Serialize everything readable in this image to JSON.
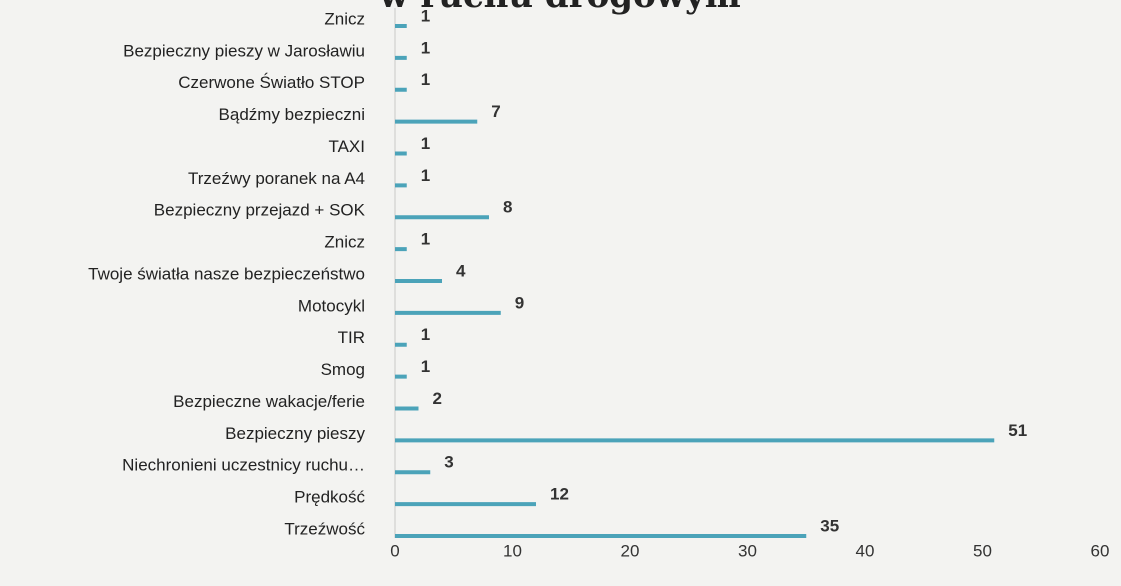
{
  "chart_data": {
    "type": "bar",
    "orientation": "horizontal",
    "title": "w ruchu drogowym",
    "categories": [
      "Znicz",
      "Bezpieczny pieszy w Jarosławiu",
      "Czerwone Światło STOP",
      "Bądźmy bezpieczni",
      "TAXI",
      "Trzeźwy poranek na A4",
      "Bezpieczny przejazd + SOK",
      "Znicz",
      "Twoje światła nasze bezpieczeństwo",
      "Motocykl",
      "TIR",
      "Smog",
      "Bezpieczne wakacje/ferie",
      "Bezpieczny pieszy",
      "Niechronieni uczestnicy ruchu…",
      "Prędkość",
      "Trzeźwość"
    ],
    "values": [
      1,
      1,
      1,
      7,
      1,
      1,
      8,
      1,
      4,
      9,
      1,
      1,
      2,
      51,
      3,
      12,
      35
    ],
    "color": "#4ba3b9",
    "xlim": [
      0,
      60
    ],
    "xticks": [
      0,
      10,
      20,
      30,
      40,
      50,
      60
    ],
    "grid": false
  }
}
